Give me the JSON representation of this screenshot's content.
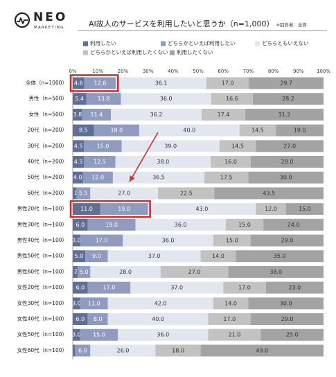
{
  "logo": {
    "word": "NEO",
    "sub": "MARKETING",
    "icon": "neo-circle-pulse-icon"
  },
  "title": "AI故人のサービスを利用したいと思うか（n=1,000）",
  "title_note": "※回答者：全員",
  "colors": {
    "series": [
      "#5f6f96",
      "#8f9bbf",
      "#e2e6ef",
      "#c2c2c2",
      "#a3a3a3"
    ],
    "highlight": "#d92b2b",
    "arrow": "#d92b2b",
    "text_dark_bar": "#ffffff",
    "text_light_bar": "#333333"
  },
  "chart_data": {
    "type": "bar",
    "orientation": "horizontal",
    "stacked": true,
    "percent": true,
    "xlim": [
      0,
      100
    ],
    "x_ticks": [
      "0%",
      "10%",
      "20%",
      "30%",
      "40%",
      "50%",
      "60%",
      "70%",
      "80%",
      "90%",
      "100%"
    ],
    "legend_position": "top",
    "categories": [
      "全体（n=1000）",
      "男性（n=500）",
      "女性（n=500）",
      "20代（n=200）",
      "30代（n=200）",
      "40代（n=200）",
      "50代（n=200）",
      "60代（n=200）",
      "男性20代（n=100）",
      "男性30代（n=100）",
      "男性40代（n=100）",
      "男性50代（n=100）",
      "男性60代（n=100）",
      "女性20代（n=100）",
      "女性30代（n=100）",
      "女性40代（n=100）",
      "女性50代（n=100）",
      "女性60代（n=100）"
    ],
    "series": [
      {
        "name": "利用したい",
        "values": [
          4.6,
          5.4,
          3.8,
          8.5,
          4.5,
          4.5,
          4.0,
          1.5,
          11.0,
          6.0,
          3.0,
          5.0,
          2.0,
          6.0,
          3.0,
          6.0,
          3.0,
          1.0
        ]
      },
      {
        "name": "どちらかといえば利用したい",
        "values": [
          12.6,
          13.8,
          11.4,
          18.0,
          15.0,
          12.5,
          12.0,
          5.5,
          19.0,
          19.0,
          17.0,
          9.0,
          5.0,
          17.0,
          11.0,
          8.0,
          15.0,
          6.0
        ]
      },
      {
        "name": "どちらともいえない",
        "values": [
          36.1,
          36.0,
          36.2,
          40.0,
          39.0,
          38.0,
          36.5,
          27.0,
          43.0,
          36.0,
          36.0,
          37.0,
          28.0,
          37.0,
          42.0,
          40.0,
          36.0,
          26.0
        ]
      },
      {
        "name": "どちらかといえば利用したくない",
        "values": [
          17.0,
          16.6,
          17.4,
          14.5,
          14.5,
          16.0,
          17.5,
          22.5,
          12.0,
          15.0,
          15.0,
          14.0,
          27.0,
          17.0,
          14.0,
          17.0,
          21.0,
          18.0
        ]
      },
      {
        "name": "利用したくない",
        "values": [
          29.7,
          28.2,
          31.2,
          19.0,
          27.0,
          29.0,
          30.0,
          43.5,
          15.0,
          24.0,
          29.0,
          35.0,
          38.0,
          23.0,
          30.0,
          29.0,
          25.0,
          49.0
        ]
      }
    ],
    "data_labels": [
      [
        "4.6",
        "12.6",
        "36.1",
        "17.0",
        "29.7"
      ],
      [
        "5.4",
        "13.8",
        "36.0",
        "16.6",
        "28.2"
      ],
      [
        "3.8",
        "11.4",
        "36.2",
        "17.4",
        "31.2"
      ],
      [
        "8.5",
        "18.0",
        "40.0",
        "14.5",
        "19.0"
      ],
      [
        "4.5",
        "15.0",
        "39.0",
        "14.5",
        "27.0"
      ],
      [
        "4.5",
        "12.5",
        "38.0",
        "16.0",
        "29.0"
      ],
      [
        "4.0",
        "12.0",
        "36.5",
        "17.5",
        "30.0"
      ],
      [
        "1.5",
        "5.5",
        "27.0",
        "22.5",
        "43.5"
      ],
      [
        "11.0",
        "19.0",
        "43.0",
        "12.0",
        "15.0"
      ],
      [
        "6.0",
        "19.0",
        "36.0",
        "15.0",
        "24.0"
      ],
      [
        "3.0",
        "17.0",
        "36.0",
        "15.0",
        "29.0"
      ],
      [
        "5.0",
        "9.0",
        "37.0",
        "14.0",
        "35.0"
      ],
      [
        "2.0",
        "5.0",
        "28.0",
        "27.0",
        "38.0"
      ],
      [
        "6.0",
        "17.0",
        "37.0",
        "17.0",
        "23.0"
      ],
      [
        "3.0",
        "11.0",
        "42.0",
        "14.0",
        "30.0"
      ],
      [
        "6.0",
        "8.0",
        "40.0",
        "17.0",
        "29.0"
      ],
      [
        "3.0",
        "15.0",
        "36.0",
        "21.0",
        "25.0"
      ],
      [
        "1.0",
        "6.0",
        "26.0",
        "18.0",
        "49.0"
      ]
    ],
    "highlighted_rows": [
      0,
      8
    ],
    "highlighted_segments": [
      0,
      1
    ],
    "annotation_arrow": {
      "from_row": 3,
      "to_row": 6
    }
  }
}
